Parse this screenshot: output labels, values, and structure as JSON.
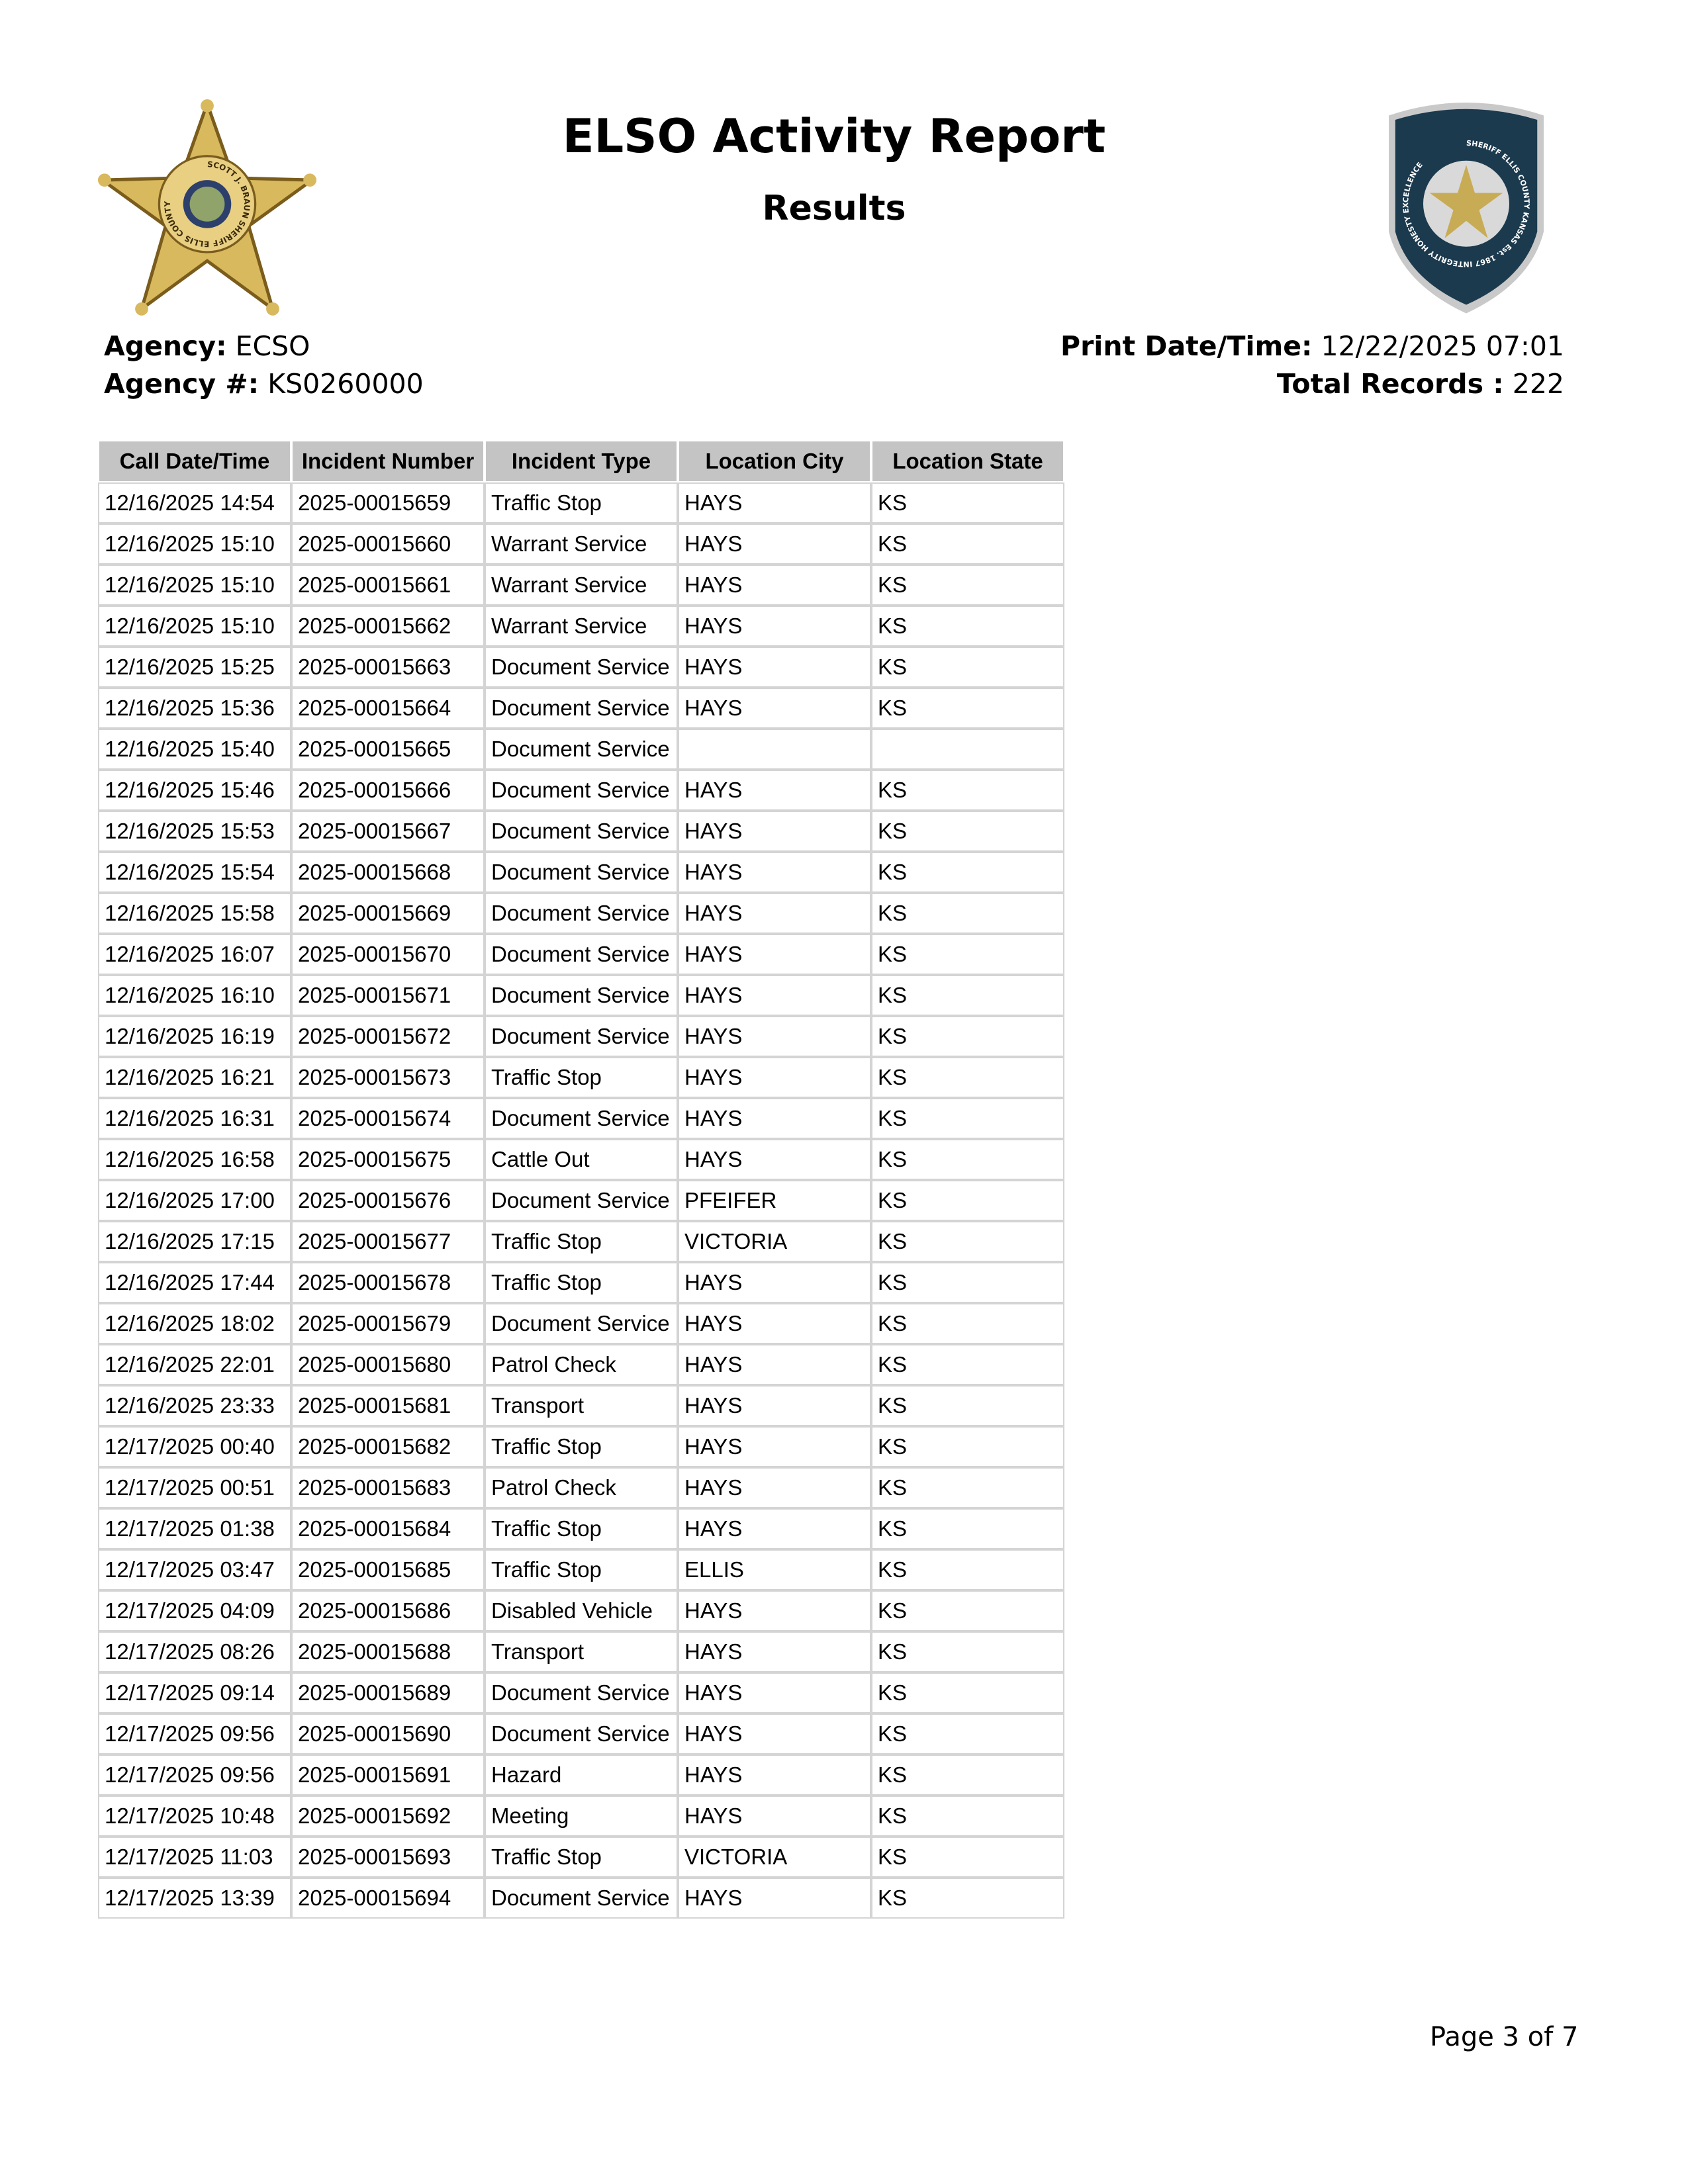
{
  "header": {
    "title": "ELSO Activity Report",
    "subtitle": "Results",
    "left_logo_text": "SCOTT J. BRAUN SHERIFF ELLIS COUNTY",
    "right_logo_text": "SHERIFF ELLIS COUNTY KANSAS Est. 1867 INTEGRITY HONESTY EXCELLENCE"
  },
  "meta": {
    "agency_label": "Agency:",
    "agency": "ECSO",
    "agency_num_label": "Agency #:",
    "agency_num": "KS0260000",
    "print_label": "Print Date/Time:",
    "print_datetime": "12/22/2025 07:01",
    "total_label": "Total Records :",
    "total": "222"
  },
  "table": {
    "columns": [
      "Call Date/Time",
      "Incident Number",
      "Incident Type",
      "Location City",
      "Location State"
    ],
    "rows": [
      [
        "12/16/2025 14:54",
        "2025-00015659",
        "Traffic Stop",
        "HAYS",
        "KS"
      ],
      [
        "12/16/2025 15:10",
        "2025-00015660",
        "Warrant Service",
        "HAYS",
        "KS"
      ],
      [
        "12/16/2025 15:10",
        "2025-00015661",
        "Warrant Service",
        "HAYS",
        "KS"
      ],
      [
        "12/16/2025 15:10",
        "2025-00015662",
        "Warrant Service",
        "HAYS",
        "KS"
      ],
      [
        "12/16/2025 15:25",
        "2025-00015663",
        "Document Service",
        "HAYS",
        "KS"
      ],
      [
        "12/16/2025 15:36",
        "2025-00015664",
        "Document Service",
        "HAYS",
        "KS"
      ],
      [
        "12/16/2025 15:40",
        "2025-00015665",
        "Document Service",
        "",
        ""
      ],
      [
        "12/16/2025 15:46",
        "2025-00015666",
        "Document Service",
        "HAYS",
        "KS"
      ],
      [
        "12/16/2025 15:53",
        "2025-00015667",
        "Document Service",
        "HAYS",
        "KS"
      ],
      [
        "12/16/2025 15:54",
        "2025-00015668",
        "Document Service",
        "HAYS",
        "KS"
      ],
      [
        "12/16/2025 15:58",
        "2025-00015669",
        "Document Service",
        "HAYS",
        "KS"
      ],
      [
        "12/16/2025 16:07",
        "2025-00015670",
        "Document Service",
        "HAYS",
        "KS"
      ],
      [
        "12/16/2025 16:10",
        "2025-00015671",
        "Document Service",
        "HAYS",
        "KS"
      ],
      [
        "12/16/2025 16:19",
        "2025-00015672",
        "Document Service",
        "HAYS",
        "KS"
      ],
      [
        "12/16/2025 16:21",
        "2025-00015673",
        "Traffic Stop",
        "HAYS",
        "KS"
      ],
      [
        "12/16/2025 16:31",
        "2025-00015674",
        "Document Service",
        "HAYS",
        "KS"
      ],
      [
        "12/16/2025 16:58",
        "2025-00015675",
        "Cattle Out",
        "HAYS",
        "KS"
      ],
      [
        "12/16/2025 17:00",
        "2025-00015676",
        "Document Service",
        "PFEIFER",
        "KS"
      ],
      [
        "12/16/2025 17:15",
        "2025-00015677",
        "Traffic Stop",
        "VICTORIA",
        "KS"
      ],
      [
        "12/16/2025 17:44",
        "2025-00015678",
        "Traffic Stop",
        "HAYS",
        "KS"
      ],
      [
        "12/16/2025 18:02",
        "2025-00015679",
        "Document Service",
        "HAYS",
        "KS"
      ],
      [
        "12/16/2025 22:01",
        "2025-00015680",
        "Patrol Check",
        "HAYS",
        "KS"
      ],
      [
        "12/16/2025 23:33",
        "2025-00015681",
        "Transport",
        "HAYS",
        "KS"
      ],
      [
        "12/17/2025 00:40",
        "2025-00015682",
        "Traffic Stop",
        "HAYS",
        "KS"
      ],
      [
        "12/17/2025 00:51",
        "2025-00015683",
        "Patrol Check",
        "HAYS",
        "KS"
      ],
      [
        "12/17/2025 01:38",
        "2025-00015684",
        "Traffic Stop",
        "HAYS",
        "KS"
      ],
      [
        "12/17/2025 03:47",
        "2025-00015685",
        "Traffic Stop",
        "ELLIS",
        "KS"
      ],
      [
        "12/17/2025 04:09",
        "2025-00015686",
        "Disabled Vehicle",
        "HAYS",
        "KS"
      ],
      [
        "12/17/2025 08:26",
        "2025-00015688",
        "Transport",
        "HAYS",
        "KS"
      ],
      [
        "12/17/2025 09:14",
        "2025-00015689",
        "Document Service",
        "HAYS",
        "KS"
      ],
      [
        "12/17/2025 09:56",
        "2025-00015690",
        "Document Service",
        "HAYS",
        "KS"
      ],
      [
        "12/17/2025 09:56",
        "2025-00015691",
        "Hazard",
        "HAYS",
        "KS"
      ],
      [
        "12/17/2025 10:48",
        "2025-00015692",
        "Meeting",
        "HAYS",
        "KS"
      ],
      [
        "12/17/2025 11:03",
        "2025-00015693",
        "Traffic Stop",
        "VICTORIA",
        "KS"
      ],
      [
        "12/17/2025 13:39",
        "2025-00015694",
        "Document Service",
        "HAYS",
        "KS"
      ]
    ]
  },
  "footer": {
    "page": "Page 3 of 7"
  },
  "colors": {
    "header_bg": "#c4c4c4",
    "cell_border": "#d4d4d4",
    "badge_gold": "#d4b45a",
    "patch_navy": "#1c3a4e"
  }
}
